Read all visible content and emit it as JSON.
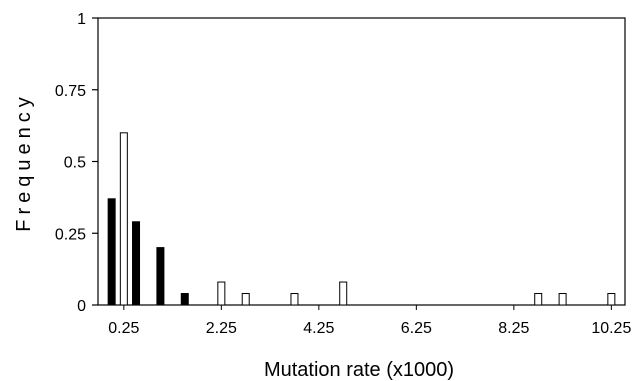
{
  "chart_data": {
    "type": "bar",
    "xlabel": "Mutation rate (x1000)",
    "ylabel": "Frequency",
    "ylim": [
      0,
      1
    ],
    "yticks": [
      "0",
      "0.25",
      "0.5",
      "0.75",
      "1"
    ],
    "xticks": [
      "0.25",
      "2.25",
      "4.25",
      "6.25",
      "8.25",
      "10.25"
    ],
    "grid": false,
    "legend": "none",
    "series": [
      {
        "color": "#000000",
        "fill": "solid",
        "points": [
          {
            "x": 0.0,
            "y": 0.37
          },
          {
            "x": 0.5,
            "y": 0.29
          },
          {
            "x": 1.0,
            "y": 0.2
          },
          {
            "x": 1.5,
            "y": 0.04
          }
        ]
      },
      {
        "color": "#000000",
        "fill": "hollow",
        "points": [
          {
            "x": 0.25,
            "y": 0.6
          },
          {
            "x": 2.25,
            "y": 0.08
          },
          {
            "x": 2.75,
            "y": 0.04
          },
          {
            "x": 3.75,
            "y": 0.04
          },
          {
            "x": 4.75,
            "y": 0.08
          },
          {
            "x": 8.75,
            "y": 0.04
          },
          {
            "x": 9.25,
            "y": 0.04
          },
          {
            "x": 10.25,
            "y": 0.04
          }
        ]
      }
    ]
  }
}
